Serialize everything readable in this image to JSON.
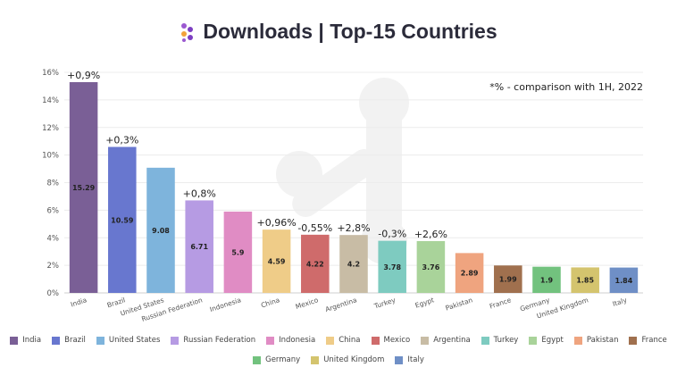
{
  "header": {
    "title": "Downloads | Top-15 Countries",
    "logo_icon": "logo-dots-icon"
  },
  "note": "*% - comparison with 1H, 2022",
  "chart_data": {
    "type": "bar",
    "title": "Downloads | Top-15 Countries",
    "xlabel": "",
    "ylabel": "",
    "ylim": [
      0,
      16
    ],
    "yticks": [
      0,
      2,
      4,
      6,
      8,
      10,
      12,
      14,
      16
    ],
    "ytick_labels": [
      "0%",
      "2%",
      "4%",
      "6%",
      "8%",
      "10%",
      "12%",
      "14%",
      "16%"
    ],
    "grid": true,
    "legend_position": "bottom",
    "categories": [
      "India",
      "Brazil",
      "United States",
      "Russian Federation",
      "Indonesia",
      "China",
      "Mexico",
      "Argentina",
      "Turkey",
      "Egypt",
      "Pakistan",
      "France",
      "Germany",
      "United Kingdom",
      "Italy"
    ],
    "values": [
      15.29,
      10.59,
      9.08,
      6.71,
      5.9,
      4.59,
      4.22,
      4.2,
      3.78,
      3.76,
      2.89,
      1.99,
      1.9,
      1.85,
      1.84
    ],
    "value_labels": [
      "15.29",
      "10.59",
      "9.08",
      "6.71",
      "5.9",
      "4.59",
      "4.22",
      "4.2",
      "3.78",
      "3.76",
      "2.89",
      "1.99",
      "1.9",
      "1.85",
      "1.84"
    ],
    "annotations": [
      "+0,9%",
      "+0,3%",
      "",
      "+0,8%",
      "",
      "+0,96%",
      "-0,55%",
      "+2,8%",
      "-0,3%",
      "+2,6%",
      "",
      "",
      "",
      "",
      ""
    ],
    "colors": [
      "#7a5f96",
      "#6877cf",
      "#7eb4dc",
      "#b69be3",
      "#e08cc4",
      "#efcc88",
      "#cf6b6b",
      "#c8bca5",
      "#7ecbc0",
      "#a9d39a",
      "#efa47f",
      "#a0704e",
      "#72c27e",
      "#d4c46e",
      "#6f8fc6"
    ]
  }
}
